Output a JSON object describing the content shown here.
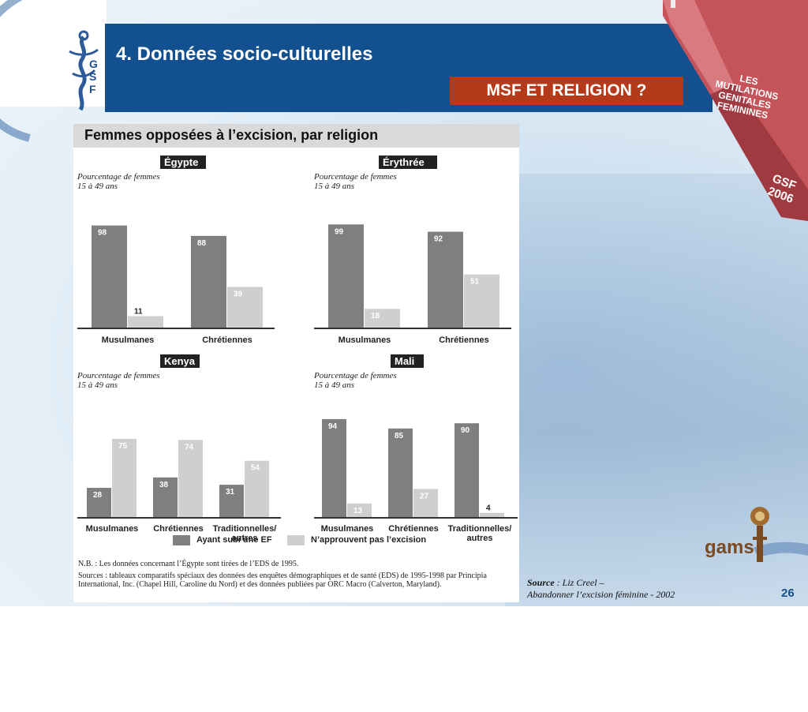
{
  "slide": {
    "title": "4. Données socio-culturelles",
    "badge": "MSF ET RELIGION ?",
    "logo_letters": [
      "G",
      "S",
      "F"
    ],
    "book_text": "LES MUTILATIONS GENITALES FEMININES",
    "book_year": "GSF 2006",
    "page_number": "26",
    "gams_logo": "gams"
  },
  "panel": {
    "title": "Femmes opposées à l’excision, par religion",
    "subtitle_line1": "Pourcentage de femmes",
    "subtitle_line2": "15 à 49 ans",
    "legend": {
      "series1": "Ayant subi une EF",
      "series2": "N’approuvent pas l’excision"
    },
    "notes": {
      "nb": "N.B. : Les données concernant l’Égypte sont tirées de l’EDS de 1995.",
      "sources": "Sources : tableaux comparatifs spéciaux des données des enquêtes démographiques et de santé (EDS) de 1995-1998 par Principia International, Inc. (Chapel Hill, Caroline du Nord) et des données publiées par ORC Macro (Calverton, Maryland)."
    }
  },
  "source": {
    "label": "Source",
    "line1_rest": " : Liz Creel –",
    "line2": "Abandonner l’excision féminine - 2002"
  },
  "colors": {
    "series1": "#7f7f7f",
    "series2": "#cfcfcf",
    "header": "#12508f",
    "badge": "#b53a1a"
  },
  "chart_data": [
    {
      "type": "bar",
      "title": "Égypte",
      "categories": [
        "Musulmanes",
        "Chrétiennes"
      ],
      "series": [
        {
          "name": "Ayant subi une EF",
          "values": [
            98,
            88
          ]
        },
        {
          "name": "N’approuvent pas l’excision",
          "values": [
            11,
            39
          ]
        }
      ],
      "ylim": [
        0,
        100
      ]
    },
    {
      "type": "bar",
      "title": "Érythrée",
      "categories": [
        "Musulmanes",
        "Chrétiennes"
      ],
      "series": [
        {
          "name": "Ayant subi une EF",
          "values": [
            99,
            92
          ]
        },
        {
          "name": "N’approuvent pas l’excision",
          "values": [
            18,
            51
          ]
        }
      ],
      "ylim": [
        0,
        100
      ]
    },
    {
      "type": "bar",
      "title": "Kenya",
      "categories": [
        "Musulmanes",
        "Chrétiennes",
        "Traditionnelles/ autres"
      ],
      "series": [
        {
          "name": "Ayant subi une EF",
          "values": [
            28,
            38,
            31
          ]
        },
        {
          "name": "N’approuvent pas l’excision",
          "values": [
            75,
            74,
            54
          ]
        }
      ],
      "ylim": [
        0,
        100
      ]
    },
    {
      "type": "bar",
      "title": "Mali",
      "categories": [
        "Musulmanes",
        "Chrétiennes",
        "Traditionnelles/ autres"
      ],
      "series": [
        {
          "name": "Ayant subi une EF",
          "values": [
            94,
            85,
            90
          ]
        },
        {
          "name": "N’approuvent pas l’excision",
          "values": [
            13,
            27,
            4
          ]
        }
      ],
      "ylim": [
        0,
        100
      ]
    }
  ]
}
